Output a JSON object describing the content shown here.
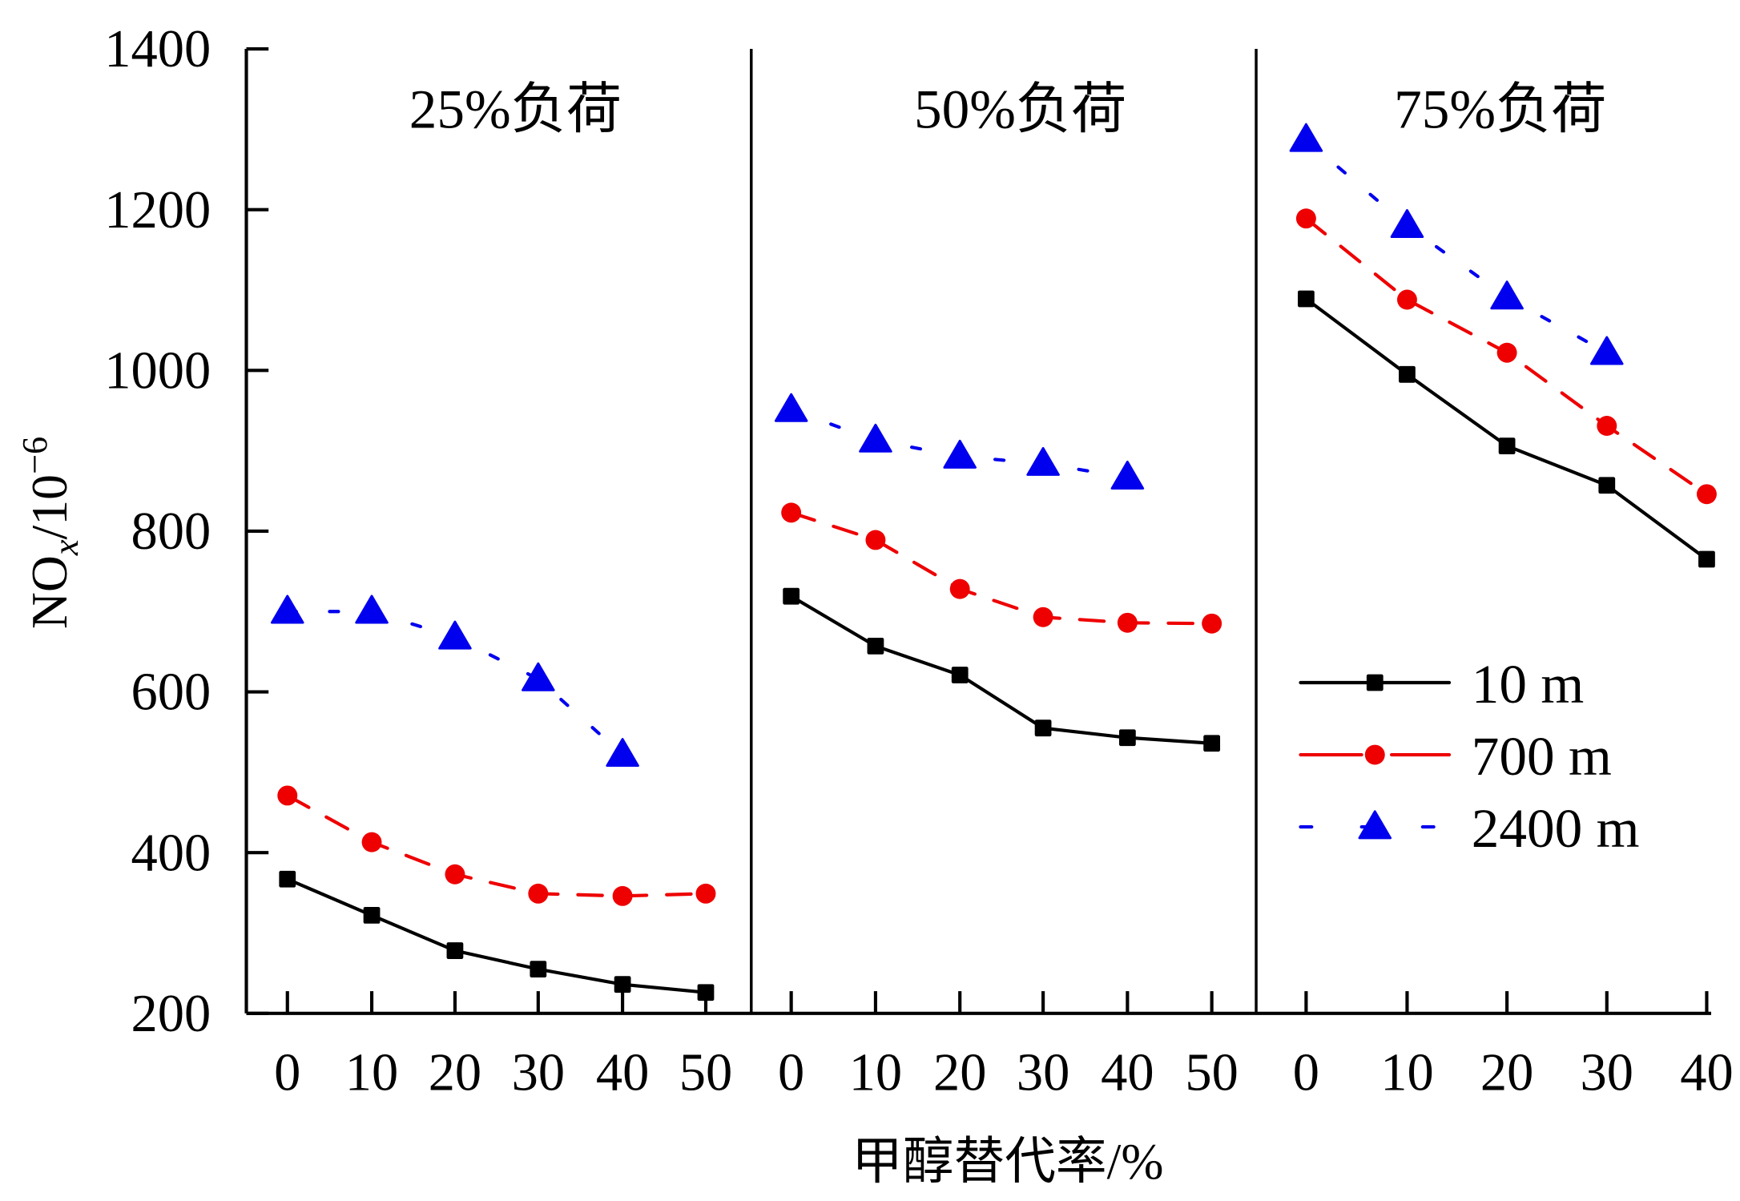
{
  "chart_data": {
    "type": "line",
    "ylabel": "NOx/10⁻⁶",
    "ylabel_parts": {
      "base": "NO",
      "sub": "x",
      "rest": "/10",
      "sup": "−6"
    },
    "xlabel": "甲醇替代率/%",
    "ylim": [
      200,
      1400
    ],
    "yticks": [
      200,
      400,
      600,
      800,
      1000,
      1200,
      1400
    ],
    "legend": {
      "placement": "right-middle of third panel",
      "entries": [
        "10 m",
        "700 m",
        "2400 m"
      ]
    },
    "series_styles": [
      {
        "name": "10 m",
        "color": "#000000",
        "marker": "square",
        "dash": "solid"
      },
      {
        "name": "700 m",
        "color": "#ee0000",
        "marker": "circle",
        "dash": "dash"
      },
      {
        "name": "2400 m",
        "color": "#0000ee",
        "marker": "triangle",
        "dash": "dot"
      }
    ],
    "panels": [
      {
        "title": "25%负荷",
        "x": [
          0,
          10,
          20,
          30,
          40,
          50
        ],
        "series": [
          {
            "name": "10 m",
            "values": [
              367,
              322,
              278,
              255,
              236,
              226
            ]
          },
          {
            "name": "700 m",
            "values": [
              471,
              413,
              373,
              349,
              346,
              349
            ]
          },
          {
            "name": "2400 m",
            "values": [
              700,
              700,
              668,
              616,
              522,
              null
            ]
          }
        ]
      },
      {
        "title": "50%负荷",
        "x": [
          0,
          10,
          20,
          30,
          40,
          50
        ],
        "series": [
          {
            "name": "10 m",
            "values": [
              719,
              657,
              621,
              555,
              543,
              536
            ]
          },
          {
            "name": "700 m",
            "values": [
              823,
              789,
              728,
              693,
              686,
              685
            ]
          },
          {
            "name": "2400 m",
            "values": [
              951,
              913,
              893,
              884,
              867,
              null
            ]
          }
        ]
      },
      {
        "title": "75%负荷",
        "x": [
          0,
          10,
          20,
          30,
          40
        ],
        "series": [
          {
            "name": "10 m",
            "values": [
              1089,
              995,
              906,
              857,
              765
            ]
          },
          {
            "name": "700 m",
            "values": [
              1189,
              1088,
              1022,
              931,
              846
            ]
          },
          {
            "name": "2400 m",
            "values": [
              1287,
              1180,
              1091,
              1022,
              null
            ]
          }
        ]
      }
    ]
  }
}
